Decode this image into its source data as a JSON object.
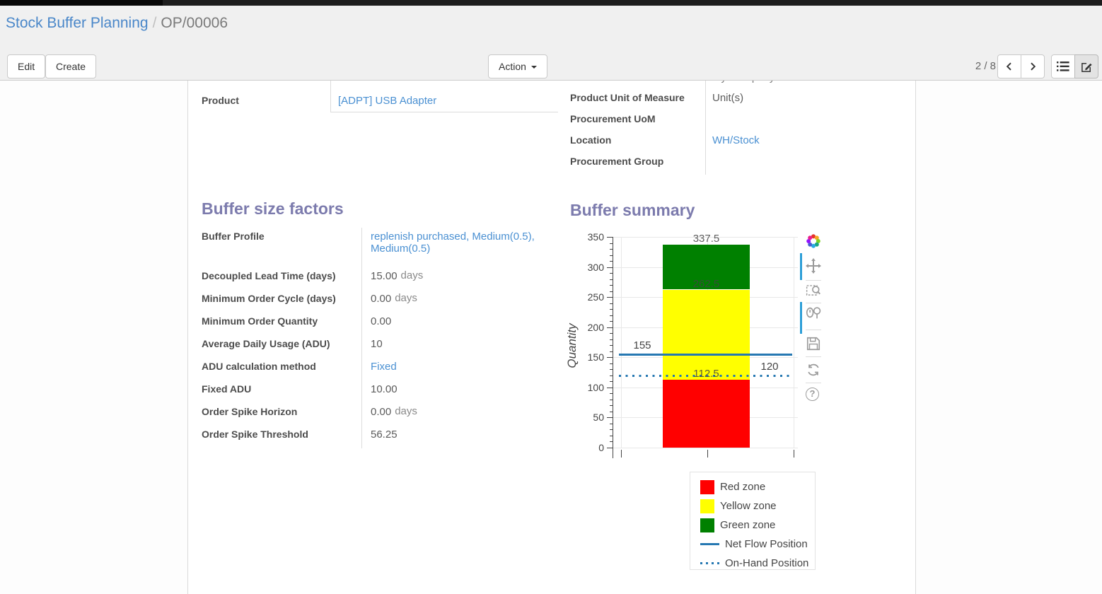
{
  "breadcrumb": {
    "parent": "Stock Buffer Planning",
    "separator": "/",
    "current": "OP/00006"
  },
  "control_panel": {
    "edit_label": "Edit",
    "create_label": "Create",
    "action_label": "Action",
    "pager_text": "2 / 8",
    "icons": [
      "chevron-left-icon",
      "chevron-right-icon",
      "list-view-icon",
      "form-view-icon"
    ]
  },
  "form": {
    "scrolled_row_value": "My Company",
    "left_fields": [
      {
        "label": "Product",
        "value": "[ADPT] USB Adapter",
        "link": true
      }
    ],
    "right_fields": [
      {
        "label": "Product Unit of Measure",
        "value": "Unit(s)"
      },
      {
        "label": "Procurement UoM",
        "value": ""
      },
      {
        "label": "Location",
        "value": "WH/Stock",
        "link": true
      },
      {
        "label": "Procurement Group",
        "value": ""
      }
    ],
    "buffer_factors": {
      "title": "Buffer size factors",
      "rows": [
        {
          "label": "Buffer Profile",
          "value": "replenish purchased, Medium(0.5), Medium(0.5)",
          "link": true
        },
        {
          "label": "Decoupled Lead Time (days)",
          "value": "15.00",
          "unit": "days"
        },
        {
          "label": "Minimum Order Cycle (days)",
          "value": "0.00",
          "unit": "days"
        },
        {
          "label": "Minimum Order Quantity",
          "value": "0.00"
        },
        {
          "label": "Average Daily Usage (ADU)",
          "value": "10"
        },
        {
          "label": "ADU calculation method",
          "value": "Fixed",
          "link": true
        },
        {
          "label": "Fixed ADU",
          "value": "10.00"
        },
        {
          "label": "Order Spike Horizon",
          "value": "0.00",
          "unit": "days"
        },
        {
          "label": "Order Spike Threshold",
          "value": "56.25"
        }
      ]
    },
    "buffer_summary_title": "Buffer summary"
  },
  "chart_data": {
    "type": "bar",
    "title": "Buffer summary",
    "ylabel": "Quantity",
    "ylim": [
      0,
      350
    ],
    "ytick_step": 50,
    "yminor_step": 10,
    "grid": true,
    "series": [
      {
        "name": "Red zone",
        "color": "#ff0000",
        "from": 0,
        "to": 112.5,
        "value": 112.5
      },
      {
        "name": "Yellow zone",
        "color": "#ffff00",
        "from": 112.5,
        "to": 262.5,
        "value": 150
      },
      {
        "name": "Green zone",
        "color": "#008000",
        "from": 262.5,
        "to": 337.5,
        "value": 75
      }
    ],
    "bar_labels": [
      "112.5",
      "262.5",
      "337.5"
    ],
    "lines": [
      {
        "name": "Net Flow Position",
        "style": "solid",
        "color": "#2678b2",
        "y": 155,
        "label": "155",
        "label_side": "left"
      },
      {
        "name": "On-Hand Position",
        "style": "dotted",
        "color": "#2678b2",
        "y": 120,
        "label": "120",
        "label_side": "right"
      }
    ],
    "legend_position": "below-right",
    "legend": [
      {
        "label": "Red zone",
        "swatch": "square",
        "color": "#ff0000"
      },
      {
        "label": "Yellow zone",
        "swatch": "square",
        "color": "#ffff00"
      },
      {
        "label": "Green zone",
        "swatch": "square",
        "color": "#008000"
      },
      {
        "label": "Net Flow Position",
        "swatch": "line",
        "color": "#2678b2"
      },
      {
        "label": "On-Hand Position",
        "swatch": "dotted",
        "color": "#2678b2"
      }
    ]
  },
  "modebar_icons": [
    "plotly-logo",
    "pan",
    "box-zoom",
    "zoom-in-out",
    "save",
    "reset-axes",
    "help"
  ]
}
